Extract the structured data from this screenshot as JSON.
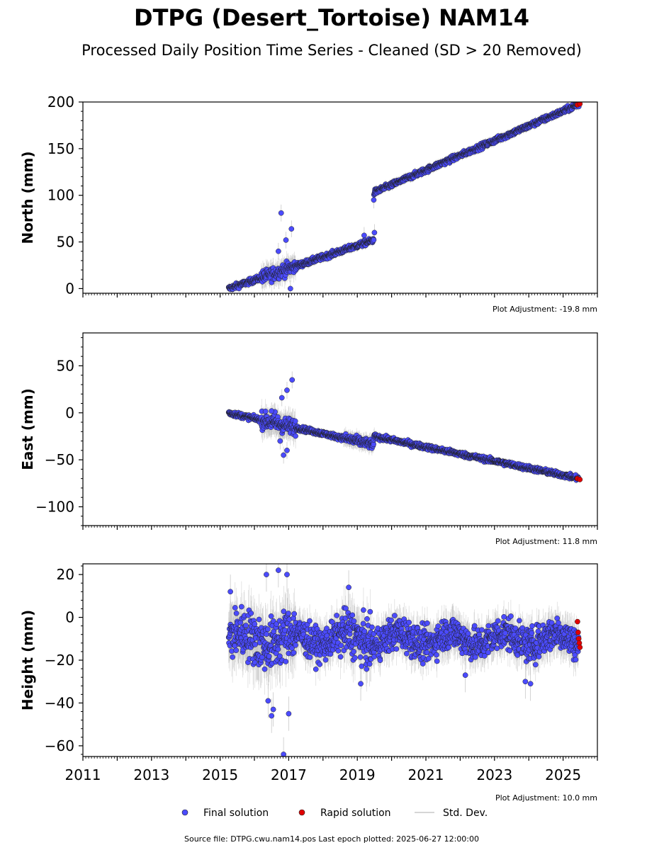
{
  "title": "DTPG (Desert_Tortoise) NAM14",
  "subtitle": "Processed Daily Position Time Series - Cleaned (SD > 20 Removed)",
  "footer": "Source file: DTPG.cwu.nam14.pos  Last epoch plotted: 2025-06-27 12:00:00",
  "legend": {
    "final_label": "Final solution",
    "rapid_label": "Rapid solution",
    "std_label": "Std. Dev."
  },
  "colors": {
    "final": "#4b4bff",
    "rapid": "#e00000",
    "std": "#b0b0b0",
    "edge": "#202020"
  },
  "x_tick_labels": [
    "2011",
    "2013",
    "2015",
    "2017",
    "2019",
    "2021",
    "2023",
    "2025"
  ],
  "chart_data": [
    {
      "type": "scatter",
      "ylabel": "North (mm)",
      "xlim": [
        2011.0,
        2026.0
      ],
      "ylim": [
        -5,
        200
      ],
      "yticks": [
        0,
        50,
        100,
        150,
        200
      ],
      "adjustment": "Plot Adjustment: -19.8 mm",
      "segments": [
        {
          "x0": 2015.25,
          "x1": 2019.48,
          "y0": 0,
          "y1": 52
        },
        {
          "x0": 2019.48,
          "x1": 2025.49,
          "y0": 103,
          "y1": 198
        }
      ],
      "outliers": [
        [
          2016.78,
          81
        ],
        [
          2017.08,
          64
        ],
        [
          2016.92,
          52
        ],
        [
          2016.7,
          40
        ],
        [
          2017.05,
          0
        ],
        [
          2019.48,
          95
        ],
        [
          2019.5,
          60
        ],
        [
          2019.2,
          57
        ]
      ],
      "final": {
        "x_range": [
          2015.25,
          2025.46
        ]
      },
      "rapid": {
        "x_range": [
          2025.42,
          2025.49
        ],
        "y": [
          197,
          198
        ]
      }
    },
    {
      "type": "scatter",
      "ylabel": "East (mm)",
      "xlim": [
        2011.0,
        2026.0
      ],
      "ylim": [
        -120,
        85
      ],
      "yticks": [
        -100,
        -50,
        0,
        50
      ],
      "adjustment": "Plot Adjustment: 11.8 mm",
      "segments": [
        {
          "x0": 2015.25,
          "x1": 2019.48,
          "y0": 0,
          "y1": -34
        },
        {
          "x0": 2019.48,
          "x1": 2025.49,
          "y0": -25,
          "y1": -70
        }
      ],
      "outliers": [
        [
          2017.1,
          35
        ],
        [
          2016.95,
          24
        ],
        [
          2016.8,
          16
        ],
        [
          2016.85,
          -45
        ],
        [
          2016.95,
          -40
        ],
        [
          2016.75,
          -30
        ],
        [
          2016.6,
          1
        ],
        [
          2016.5,
          2
        ]
      ],
      "final": {
        "x_range": [
          2015.25,
          2025.46
        ]
      },
      "rapid": {
        "x_range": [
          2025.42,
          2025.49
        ],
        "y": [
          -70,
          -71
        ]
      }
    },
    {
      "type": "scatter",
      "ylabel": "Height (mm)",
      "xlim": [
        2011.0,
        2026.0
      ],
      "ylim": [
        -65,
        25
      ],
      "yticks": [
        -60,
        -40,
        -20,
        0,
        20
      ],
      "adjustment": "Plot Adjustment: 10.0 mm",
      "mean": -10,
      "outliers": [
        [
          2016.5,
          -46
        ],
        [
          2016.55,
          -43
        ],
        [
          2016.4,
          -39
        ],
        [
          2017.0,
          -45
        ],
        [
          2016.85,
          -64
        ],
        [
          2016.95,
          20
        ],
        [
          2016.7,
          22
        ],
        [
          2016.35,
          20
        ],
        [
          2018.75,
          14
        ],
        [
          2022.15,
          -27
        ],
        [
          2023.9,
          -30
        ],
        [
          2024.05,
          -31
        ],
        [
          2019.1,
          -31
        ],
        [
          2015.3,
          12
        ]
      ],
      "final": {
        "x_range": [
          2015.25,
          2025.46
        ]
      },
      "rapid": {
        "x_range": [
          2025.42,
          2025.49
        ],
        "y": [
          -2,
          -7,
          -10,
          -12,
          -14
        ]
      }
    }
  ]
}
